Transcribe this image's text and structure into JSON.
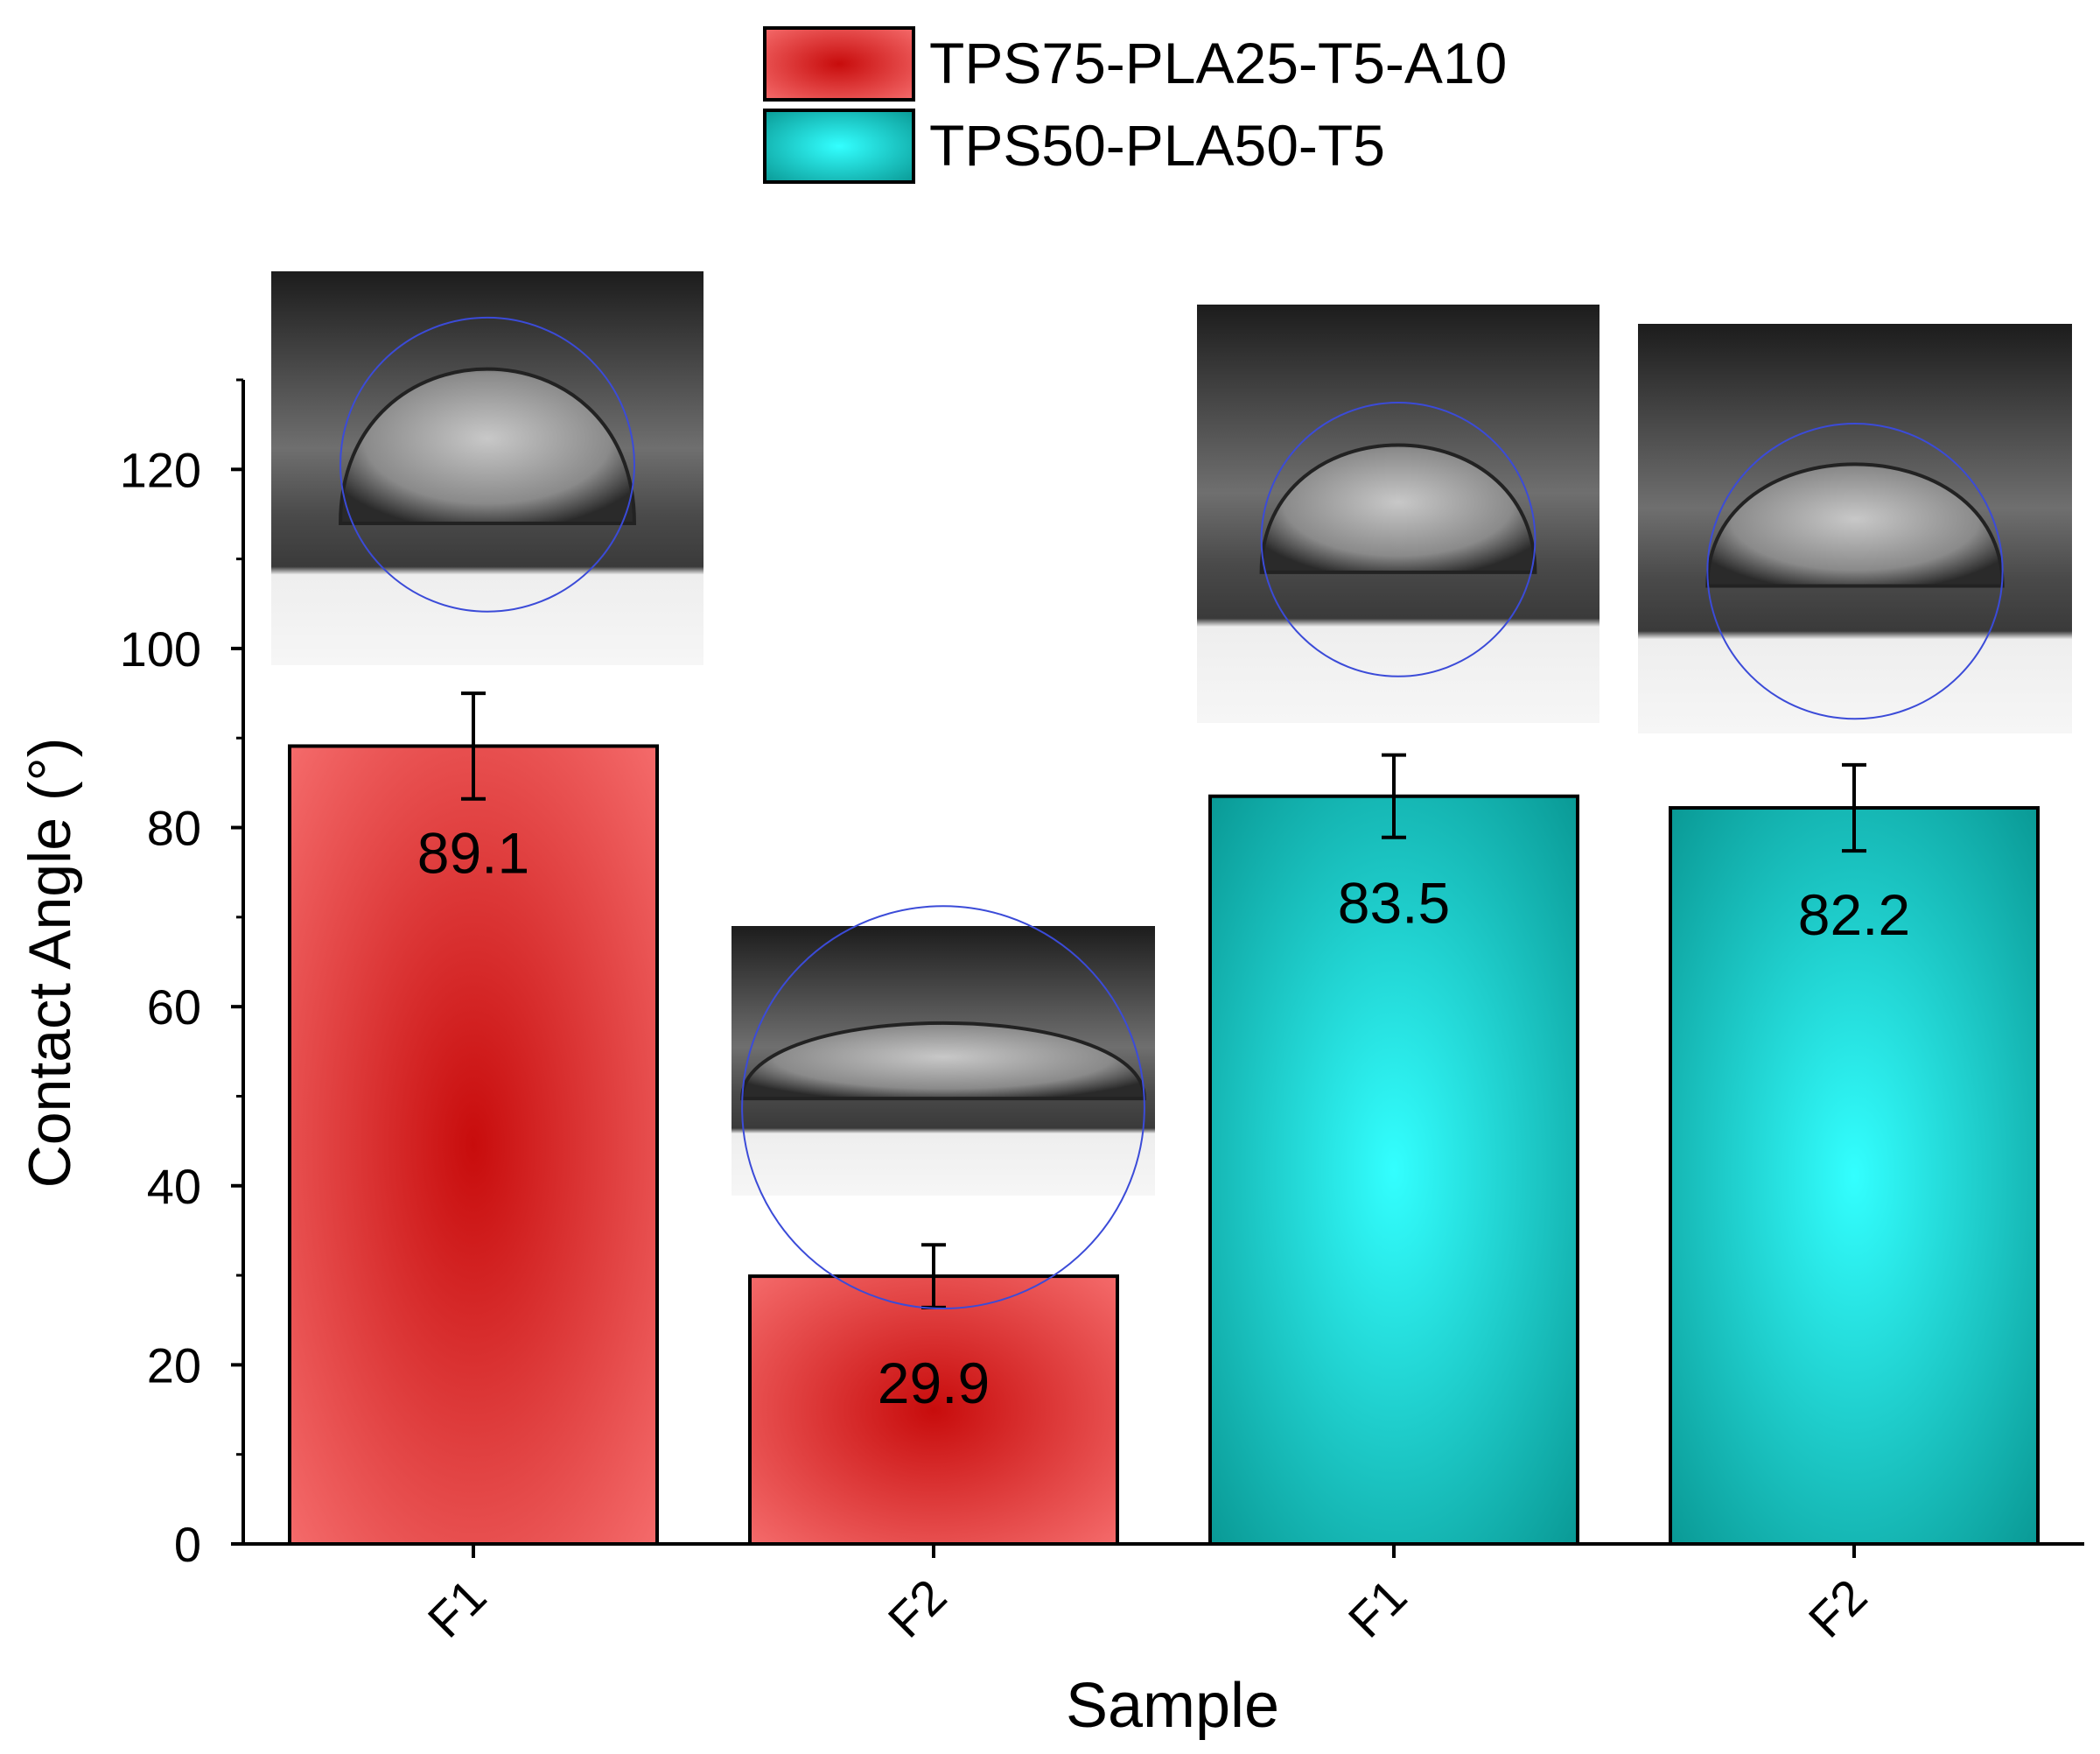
{
  "chart_data": {
    "type": "bar",
    "xlabel": "Sample",
    "ylabel": "Contact Angle (°)",
    "ylim": [
      0,
      130
    ],
    "yticks": [
      0,
      20,
      40,
      60,
      80,
      100,
      120
    ],
    "categories": [
      "F1",
      "F2",
      "F1",
      "F2"
    ],
    "series": [
      {
        "name": "TPS75-PLA25-T5-A10",
        "color": "#f46a6a",
        "color_center": "#c80c0c",
        "values": [
          89.1,
          29.9,
          null,
          null
        ],
        "errors": [
          5.9,
          3.5,
          null,
          null
        ]
      },
      {
        "name": "TPS50-PLA50-T5",
        "color": "#0a9a96",
        "color_center": "#33ffff",
        "values": [
          null,
          null,
          83.5,
          82.2
        ],
        "errors": [
          null,
          null,
          4.6,
          4.8
        ]
      }
    ],
    "data_labels": [
      "89.1",
      "29.9",
      "83.5",
      "82.2"
    ],
    "legend_position": "top-center",
    "grid": false,
    "insets": [
      {
        "icon": "droplet-contact-angle-image"
      },
      {
        "icon": "droplet-contact-angle-image"
      },
      {
        "icon": "droplet-contact-angle-image"
      },
      {
        "icon": "droplet-contact-angle-image"
      }
    ]
  }
}
